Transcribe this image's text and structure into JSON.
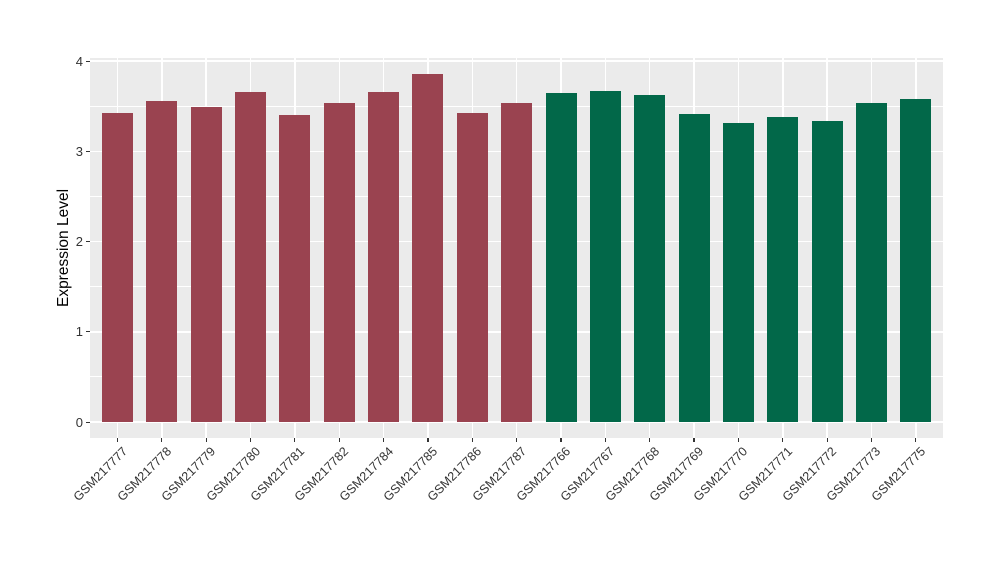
{
  "figure": {
    "background_color": "#FFFFFF",
    "panel_background_color": "#EBEBEB",
    "gridline_color": "#FFFFFF",
    "tick_mark_color": "#333333",
    "tick_label_color": "#333333",
    "axis_title_color": "#000000"
  },
  "chart_data": {
    "type": "bar",
    "title": "",
    "xlabel": "",
    "ylabel": "Expression Level",
    "ylim": [
      0,
      4
    ],
    "yticks": [
      0,
      1,
      2,
      3,
      4
    ],
    "yticks_minor": [
      0.5,
      1.5,
      2.5,
      3.5
    ],
    "grid": "white major+minor horizontal lines, white vertical line at each category center, gray panel",
    "legend_position": "none",
    "x_label_rotation_deg": 45,
    "categories": [
      "GSM217777",
      "GSM217778",
      "GSM217779",
      "GSM217780",
      "GSM217781",
      "GSM217782",
      "GSM217784",
      "GSM217785",
      "GSM217786",
      "GSM217787",
      "GSM217766",
      "GSM217767",
      "GSM217768",
      "GSM217769",
      "GSM217770",
      "GSM217771",
      "GSM217772",
      "GSM217773",
      "GSM217775"
    ],
    "values": [
      3.42,
      3.56,
      3.49,
      3.66,
      3.4,
      3.54,
      3.66,
      3.86,
      3.42,
      3.53,
      3.65,
      3.67,
      3.62,
      3.41,
      3.31,
      3.38,
      3.34,
      3.54,
      3.58
    ],
    "bar_groups": [
      "group1",
      "group1",
      "group1",
      "group1",
      "group1",
      "group1",
      "group1",
      "group1",
      "group1",
      "group1",
      "group2",
      "group2",
      "group2",
      "group2",
      "group2",
      "group2",
      "group2",
      "group2",
      "group2"
    ],
    "group_colors": {
      "group1": "#9A4350",
      "group2": "#026849"
    }
  }
}
